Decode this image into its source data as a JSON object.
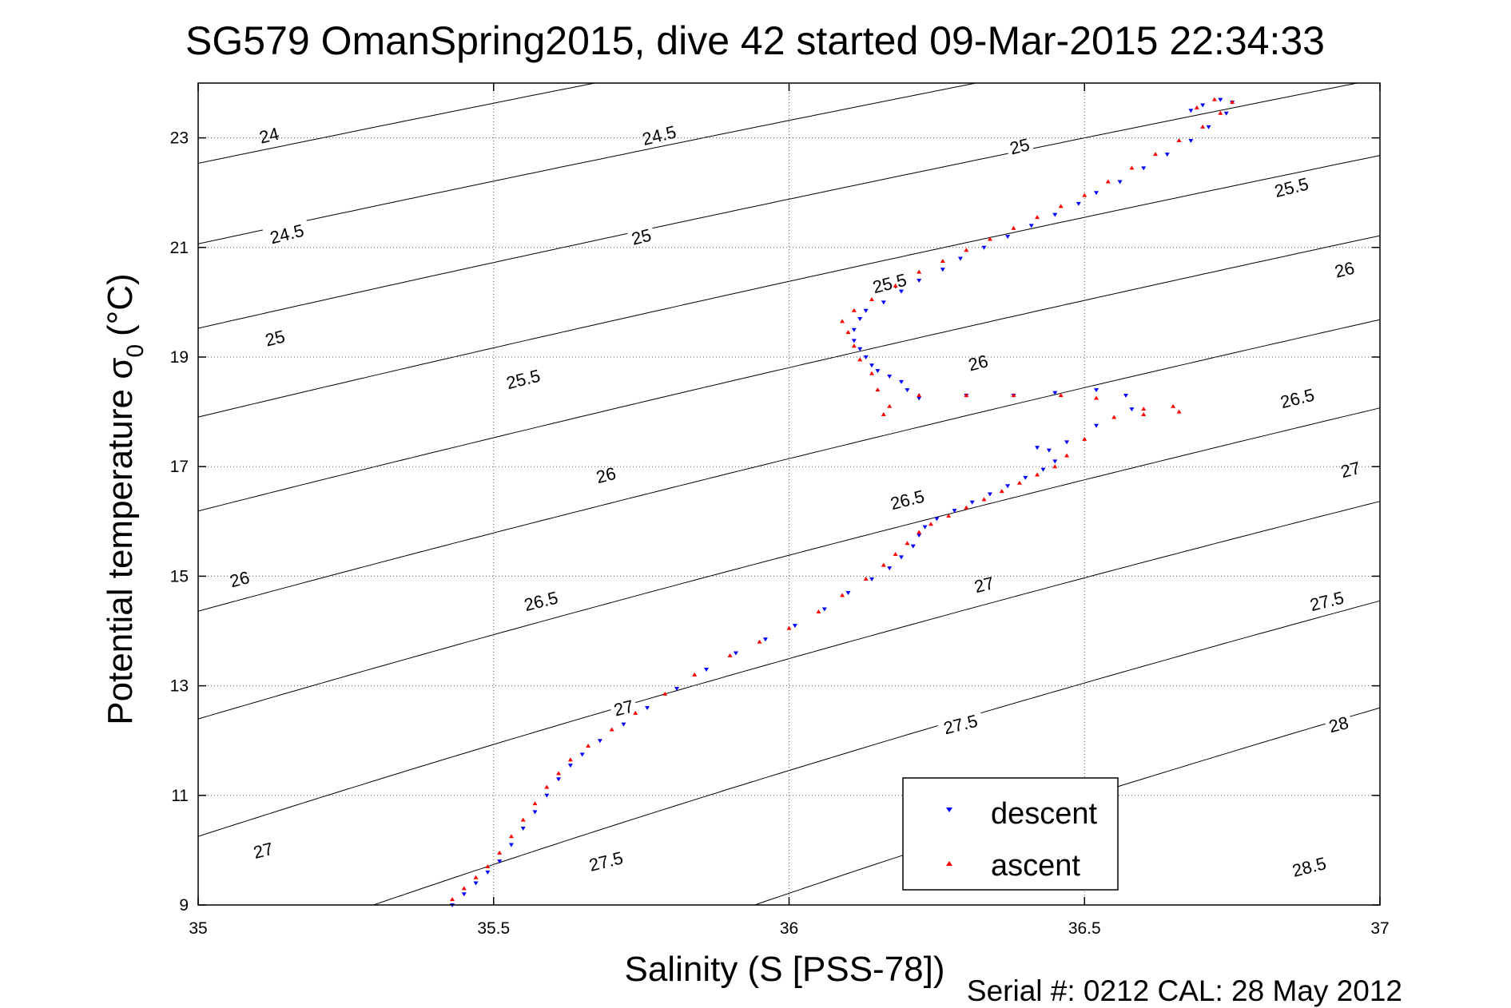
{
  "chart_data": {
    "type": "scatter",
    "title": "SG579 OmanSpring2015, dive 42 started 09-Mar-2015 22:34:33",
    "xlabel": "Salinity (S [PSS-78])",
    "ylabel_main": "Potential temperature σ",
    "ylabel_sub": "0",
    "ylabel_unit": "(°C)",
    "xlim": [
      35,
      37
    ],
    "ylim": [
      9,
      24
    ],
    "x_ticks": [
      35,
      35.5,
      36,
      36.5,
      37
    ],
    "x_tick_labels": [
      "35",
      "35.5",
      "36",
      "36.5",
      "37"
    ],
    "y_ticks": [
      9,
      11,
      13,
      15,
      17,
      19,
      21,
      23
    ],
    "y_tick_labels": [
      "9",
      "11",
      "13",
      "15",
      "17",
      "19",
      "21",
      "23"
    ],
    "grid": true,
    "legend_position": "bottom-right",
    "footer": "Serial #: 0212  CAL: 28 May 2012",
    "contours": {
      "levels": [
        24,
        24.5,
        25,
        25.5,
        26,
        26.5,
        27,
        27.5,
        28,
        28.5
      ],
      "labels": [
        {
          "level": 24,
          "text": "24",
          "s": 35.12,
          "t": 23.05
        },
        {
          "level": 24.5,
          "text": "24.5",
          "s": 35.15,
          "t": 21.25
        },
        {
          "level": 24.5,
          "text": "24.5",
          "s": 35.78,
          "t": 23.05
        },
        {
          "level": 25,
          "text": "25",
          "s": 35.13,
          "t": 19.35
        },
        {
          "level": 25,
          "text": "25",
          "s": 35.75,
          "t": 21.2
        },
        {
          "level": 25,
          "text": "25",
          "s": 36.39,
          "t": 22.85
        },
        {
          "level": 25.5,
          "text": "25.5",
          "s": 35.55,
          "t": 18.6
        },
        {
          "level": 25.5,
          "text": "25.5",
          "s": 36.17,
          "t": 20.35
        },
        {
          "level": 25.5,
          "text": "25.5",
          "s": 36.85,
          "t": 22.1
        },
        {
          "level": 26,
          "text": "26",
          "s": 35.07,
          "t": 14.95
        },
        {
          "level": 26,
          "text": "26",
          "s": 35.69,
          "t": 16.85
        },
        {
          "level": 26,
          "text": "26",
          "s": 36.32,
          "t": 18.9
        },
        {
          "level": 26,
          "text": "26",
          "s": 36.94,
          "t": 20.6
        },
        {
          "level": 26.5,
          "text": "26.5",
          "s": 35.58,
          "t": 14.55
        },
        {
          "level": 26.5,
          "text": "26.5",
          "s": 36.2,
          "t": 16.4
        },
        {
          "level": 26.5,
          "text": "26.5",
          "s": 36.86,
          "t": 18.25
        },
        {
          "level": 27,
          "text": "27",
          "s": 35.11,
          "t": 10.0
        },
        {
          "level": 27,
          "text": "27",
          "s": 35.72,
          "t": 12.6
        },
        {
          "level": 27,
          "text": "27",
          "s": 36.33,
          "t": 14.85
        },
        {
          "level": 27,
          "text": "27",
          "s": 36.95,
          "t": 16.95
        },
        {
          "level": 27.5,
          "text": "27.5",
          "s": 35.69,
          "t": 9.8
        },
        {
          "level": 27.5,
          "text": "27.5",
          "s": 36.29,
          "t": 12.3
        },
        {
          "level": 27.5,
          "text": "27.5",
          "s": 36.91,
          "t": 14.55
        },
        {
          "level": 28,
          "text": "28",
          "s": 36.93,
          "t": 12.3
        },
        {
          "level": 28.5,
          "text": "28.5",
          "s": 36.88,
          "t": 9.7
        }
      ]
    },
    "series": [
      {
        "name": "descent",
        "color": "#0000ff",
        "marker": "triangle-down",
        "points": [
          [
            35.43,
            9.0
          ],
          [
            35.45,
            9.2
          ],
          [
            35.47,
            9.4
          ],
          [
            35.49,
            9.6
          ],
          [
            35.51,
            9.8
          ],
          [
            35.53,
            10.1
          ],
          [
            35.55,
            10.4
          ],
          [
            35.57,
            10.7
          ],
          [
            35.59,
            11.0
          ],
          [
            35.61,
            11.3
          ],
          [
            35.63,
            11.55
          ],
          [
            35.65,
            11.75
          ],
          [
            35.68,
            12.0
          ],
          [
            35.72,
            12.3
          ],
          [
            35.76,
            12.6
          ],
          [
            35.81,
            12.95
          ],
          [
            35.86,
            13.3
          ],
          [
            35.91,
            13.6
          ],
          [
            35.96,
            13.85
          ],
          [
            36.01,
            14.1
          ],
          [
            36.06,
            14.4
          ],
          [
            36.1,
            14.7
          ],
          [
            36.14,
            14.95
          ],
          [
            36.17,
            15.15
          ],
          [
            36.19,
            15.35
          ],
          [
            36.21,
            15.55
          ],
          [
            36.22,
            15.75
          ],
          [
            36.23,
            15.9
          ],
          [
            36.25,
            16.05
          ],
          [
            36.28,
            16.2
          ],
          [
            36.31,
            16.35
          ],
          [
            36.34,
            16.5
          ],
          [
            36.37,
            16.65
          ],
          [
            36.4,
            16.8
          ],
          [
            36.43,
            16.95
          ],
          [
            36.45,
            17.1
          ],
          [
            36.44,
            17.3
          ],
          [
            36.42,
            17.35
          ],
          [
            36.47,
            17.45
          ],
          [
            36.52,
            17.75
          ],
          [
            36.58,
            18.05
          ],
          [
            36.57,
            18.3
          ],
          [
            36.52,
            18.4
          ],
          [
            36.45,
            18.35
          ],
          [
            36.38,
            18.3
          ],
          [
            36.3,
            18.3
          ],
          [
            36.22,
            18.25
          ],
          [
            36.2,
            18.4
          ],
          [
            36.19,
            18.55
          ],
          [
            36.17,
            18.65
          ],
          [
            36.15,
            18.75
          ],
          [
            36.14,
            18.85
          ],
          [
            36.13,
            19.0
          ],
          [
            36.12,
            19.15
          ],
          [
            36.11,
            19.3
          ],
          [
            36.11,
            19.5
          ],
          [
            36.12,
            19.7
          ],
          [
            36.13,
            19.85
          ],
          [
            36.16,
            20.0
          ],
          [
            36.19,
            20.2
          ],
          [
            36.22,
            20.4
          ],
          [
            36.26,
            20.6
          ],
          [
            36.29,
            20.8
          ],
          [
            36.33,
            21.0
          ],
          [
            36.37,
            21.2
          ],
          [
            36.41,
            21.4
          ],
          [
            36.45,
            21.6
          ],
          [
            36.49,
            21.8
          ],
          [
            36.52,
            22.0
          ],
          [
            36.56,
            22.2
          ],
          [
            36.6,
            22.45
          ],
          [
            36.64,
            22.7
          ],
          [
            36.68,
            22.95
          ],
          [
            36.71,
            23.2
          ],
          [
            36.74,
            23.45
          ],
          [
            36.75,
            23.65
          ],
          [
            36.73,
            23.7
          ],
          [
            36.7,
            23.6
          ],
          [
            36.68,
            23.5
          ]
        ]
      },
      {
        "name": "ascent",
        "color": "#ff0000",
        "marker": "triangle-up",
        "points": [
          [
            35.43,
            9.1
          ],
          [
            35.45,
            9.3
          ],
          [
            35.47,
            9.5
          ],
          [
            35.49,
            9.7
          ],
          [
            35.51,
            9.95
          ],
          [
            35.53,
            10.25
          ],
          [
            35.55,
            10.55
          ],
          [
            35.57,
            10.85
          ],
          [
            35.59,
            11.15
          ],
          [
            35.61,
            11.4
          ],
          [
            35.63,
            11.65
          ],
          [
            35.66,
            11.9
          ],
          [
            35.7,
            12.2
          ],
          [
            35.74,
            12.5
          ],
          [
            35.79,
            12.85
          ],
          [
            35.84,
            13.2
          ],
          [
            35.9,
            13.55
          ],
          [
            35.95,
            13.8
          ],
          [
            36.0,
            14.05
          ],
          [
            36.05,
            14.35
          ],
          [
            36.09,
            14.65
          ],
          [
            36.13,
            14.95
          ],
          [
            36.16,
            15.2
          ],
          [
            36.18,
            15.4
          ],
          [
            36.2,
            15.6
          ],
          [
            36.22,
            15.8
          ],
          [
            36.24,
            15.95
          ],
          [
            36.27,
            16.1
          ],
          [
            36.3,
            16.25
          ],
          [
            36.33,
            16.4
          ],
          [
            36.36,
            16.55
          ],
          [
            36.39,
            16.7
          ],
          [
            36.42,
            16.85
          ],
          [
            36.45,
            17.0
          ],
          [
            36.47,
            17.2
          ],
          [
            36.5,
            17.5
          ],
          [
            36.55,
            17.9
          ],
          [
            36.6,
            18.05
          ],
          [
            36.65,
            18.1
          ],
          [
            36.66,
            18.0
          ],
          [
            36.6,
            17.95
          ],
          [
            36.52,
            18.25
          ],
          [
            36.46,
            18.3
          ],
          [
            36.38,
            18.3
          ],
          [
            36.3,
            18.3
          ],
          [
            36.22,
            18.3
          ],
          [
            36.17,
            18.1
          ],
          [
            36.16,
            17.95
          ],
          [
            36.15,
            18.4
          ],
          [
            36.14,
            18.7
          ],
          [
            36.12,
            18.95
          ],
          [
            36.11,
            19.2
          ],
          [
            36.1,
            19.45
          ],
          [
            36.09,
            19.65
          ],
          [
            36.11,
            19.85
          ],
          [
            36.14,
            20.05
          ],
          [
            36.18,
            20.3
          ],
          [
            36.22,
            20.55
          ],
          [
            36.26,
            20.75
          ],
          [
            36.3,
            20.95
          ],
          [
            36.34,
            21.15
          ],
          [
            36.38,
            21.35
          ],
          [
            36.42,
            21.55
          ],
          [
            36.46,
            21.75
          ],
          [
            36.5,
            21.95
          ],
          [
            36.54,
            22.2
          ],
          [
            36.58,
            22.45
          ],
          [
            36.62,
            22.7
          ],
          [
            36.66,
            22.95
          ],
          [
            36.7,
            23.2
          ],
          [
            36.73,
            23.45
          ],
          [
            36.75,
            23.65
          ],
          [
            36.72,
            23.7
          ],
          [
            36.69,
            23.55
          ]
        ]
      }
    ]
  }
}
